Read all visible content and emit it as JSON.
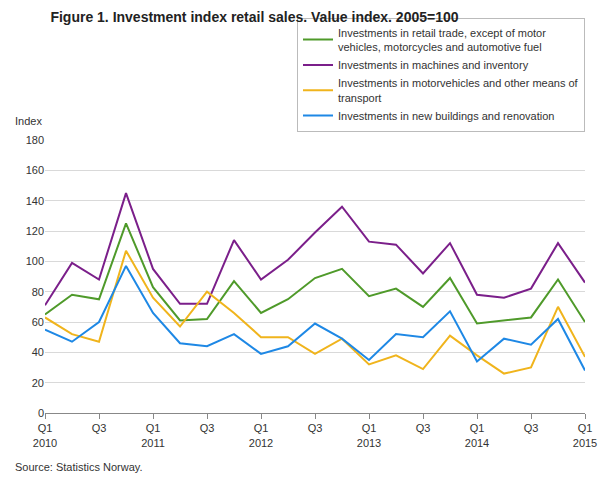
{
  "chart_data": {
    "type": "line",
    "title": "Figure 1. Investment index retail sales. Value index. 2005=100",
    "y_label": "Index",
    "source": "Source: Statistics Norway.",
    "categories": [
      "Q1\n2010",
      null,
      "Q3",
      null,
      "Q1\n2011",
      null,
      "Q3",
      null,
      "Q1\n2012",
      null,
      "Q3",
      null,
      "Q1\n2013",
      null,
      "Q3",
      null,
      "Q1\n2014",
      null,
      "Q3",
      null,
      "Q1\n2015"
    ],
    "series": [
      {
        "name": "Investments in retail trade, except of motor\nvehicles, motorcycles and automotive fuel",
        "color": "#4f9a2a",
        "values": [
          65,
          78,
          75,
          125,
          83,
          61,
          62,
          87,
          66,
          75,
          89,
          95,
          77,
          82,
          70,
          89,
          59,
          61,
          63,
          88,
          60
        ]
      },
      {
        "name": "Investments in machines and inventory",
        "color": "#7b1f8a",
        "values": [
          71,
          99,
          88,
          145,
          95,
          72,
          72,
          114,
          88,
          101,
          119,
          136,
          113,
          111,
          92,
          112,
          78,
          76,
          82,
          112,
          86
        ]
      },
      {
        "name": "Investments in motorvehicles and other means of\ntransport",
        "color": "#f0b41c",
        "values": [
          63,
          52,
          47,
          107,
          76,
          57,
          80,
          66,
          50,
          50,
          39,
          49,
          32,
          38,
          29,
          51,
          38,
          26,
          30,
          70,
          37
        ]
      },
      {
        "name": "Investments in new buildings and renovation",
        "color": "#1e88e5",
        "values": [
          55,
          47,
          60,
          97,
          66,
          46,
          44,
          52,
          39,
          44,
          59,
          49,
          35,
          52,
          50,
          67,
          34,
          49,
          45,
          62,
          28
        ]
      }
    ],
    "ylim": [
      0,
      180
    ],
    "yticks": [
      0,
      20,
      40,
      60,
      80,
      100,
      120,
      140,
      160,
      180
    ],
    "grid": true,
    "legend": "top right"
  }
}
